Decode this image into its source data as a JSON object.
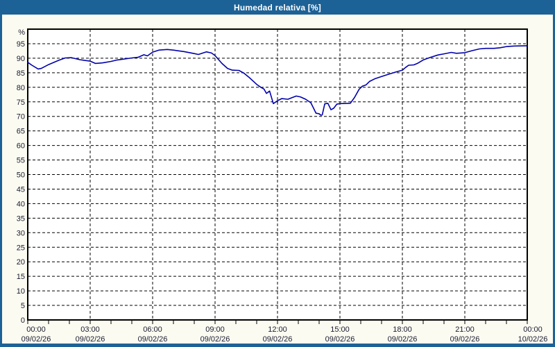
{
  "window": {
    "title": "Humedad relativa [%]",
    "title_bar_color": "#1d6296",
    "border_color": "#1d6296",
    "content_background": "#fbfbf1"
  },
  "chart_data": {
    "type": "line",
    "title": "Humedad relativa [%]",
    "ylabel": "%",
    "xlabel": "",
    "ylim": [
      0,
      100
    ],
    "xlim_hours": [
      0,
      24
    ],
    "grid": "dashed",
    "legend": "none",
    "plot_background": "#ffffff",
    "grid_color": "#000000",
    "axis_color": "#000000",
    "axis_text_color": "#1a1a30",
    "series_color": "#0000aa",
    "y_tick_step": 5,
    "y_tick_labels": [
      "0",
      "5",
      "10",
      "15",
      "20",
      "25",
      "30",
      "35",
      "40",
      "45",
      "50",
      "55",
      "60",
      "65",
      "70",
      "75",
      "80",
      "85",
      "90",
      "95"
    ],
    "x_major_step_hours": 3,
    "x_minor_step_hours": 1,
    "x_ticks": [
      {
        "time": "00:00",
        "date": "09/02/26"
      },
      {
        "time": "03:00",
        "date": "09/02/26"
      },
      {
        "time": "06:00",
        "date": "09/02/26"
      },
      {
        "time": "09:00",
        "date": "09/02/26"
      },
      {
        "time": "12:00",
        "date": "09/02/26"
      },
      {
        "time": "15:00",
        "date": "09/02/26"
      },
      {
        "time": "18:00",
        "date": "09/02/26"
      },
      {
        "time": "21:00",
        "date": "09/02/26"
      },
      {
        "time": "00:00",
        "date": "10/02/26"
      }
    ],
    "series_name": "Humedad relativa",
    "points": [
      [
        0,
        88.6
      ],
      [
        0.2,
        87.6
      ],
      [
        0.5,
        86.3
      ],
      [
        0.65,
        86.5
      ],
      [
        1,
        87.8
      ],
      [
        1.5,
        89.3
      ],
      [
        1.8,
        90.1
      ],
      [
        2.1,
        90.2
      ],
      [
        2.5,
        89.5
      ],
      [
        2.8,
        89.2
      ],
      [
        3,
        89
      ],
      [
        3.25,
        88.2
      ],
      [
        3.6,
        88.4
      ],
      [
        4,
        88.9
      ],
      [
        4.3,
        89.4
      ],
      [
        4.6,
        89.7
      ],
      [
        5,
        90.1
      ],
      [
        5.3,
        90.3
      ],
      [
        5.58,
        91.2
      ],
      [
        5.75,
        90.8
      ],
      [
        6,
        92.1
      ],
      [
        6.3,
        92.8
      ],
      [
        6.7,
        93
      ],
      [
        7,
        92.8
      ],
      [
        7.5,
        92.3
      ],
      [
        8,
        91.6
      ],
      [
        8.2,
        91.3
      ],
      [
        8.58,
        92.2
      ],
      [
        8.83,
        91.8
      ],
      [
        9,
        90.9
      ],
      [
        9.33,
        88.2
      ],
      [
        9.6,
        86.5
      ],
      [
        9.83,
        85.9
      ],
      [
        10.15,
        85.8
      ],
      [
        10.4,
        84.8
      ],
      [
        10.67,
        83.2
      ],
      [
        11,
        81
      ],
      [
        11.2,
        80
      ],
      [
        11.35,
        79.4
      ],
      [
        11.47,
        77.9
      ],
      [
        11.62,
        78.7
      ],
      [
        11.8,
        74.4
      ],
      [
        12,
        75.4
      ],
      [
        12.2,
        76.1
      ],
      [
        12.5,
        75.9
      ],
      [
        12.9,
        77
      ],
      [
        13.1,
        76.7
      ],
      [
        13.35,
        75.9
      ],
      [
        13.6,
        74.7
      ],
      [
        13.72,
        73
      ],
      [
        13.85,
        71.1
      ],
      [
        14,
        70.9
      ],
      [
        14.08,
        70.4
      ],
      [
        14.15,
        70.5
      ],
      [
        14.27,
        74.3
      ],
      [
        14.42,
        74.5
      ],
      [
        14.57,
        72.3
      ],
      [
        14.7,
        72.8
      ],
      [
        14.85,
        74.2
      ],
      [
        15,
        74.4
      ],
      [
        15.5,
        74.5
      ],
      [
        15.7,
        76.5
      ],
      [
        15.92,
        79.3
      ],
      [
        16.08,
        80.4
      ],
      [
        16.25,
        80.8
      ],
      [
        16.42,
        82
      ],
      [
        16.7,
        83
      ],
      [
        17,
        83.7
      ],
      [
        17.35,
        84.5
      ],
      [
        17.7,
        85.3
      ],
      [
        18,
        85.9
      ],
      [
        18.15,
        86.8
      ],
      [
        18.3,
        87.6
      ],
      [
        18.55,
        87.7
      ],
      [
        18.72,
        88.2
      ],
      [
        19,
        89.4
      ],
      [
        19.35,
        90.3
      ],
      [
        19.7,
        91.1
      ],
      [
        20,
        91.5
      ],
      [
        20.35,
        92
      ],
      [
        20.6,
        91.7
      ],
      [
        21,
        91.9
      ],
      [
        21.35,
        92.6
      ],
      [
        21.7,
        93.2
      ],
      [
        22,
        93.4
      ],
      [
        22.4,
        93.4
      ],
      [
        22.7,
        93.6
      ],
      [
        23,
        94
      ],
      [
        23.4,
        94.2
      ],
      [
        24,
        94.3
      ]
    ]
  }
}
